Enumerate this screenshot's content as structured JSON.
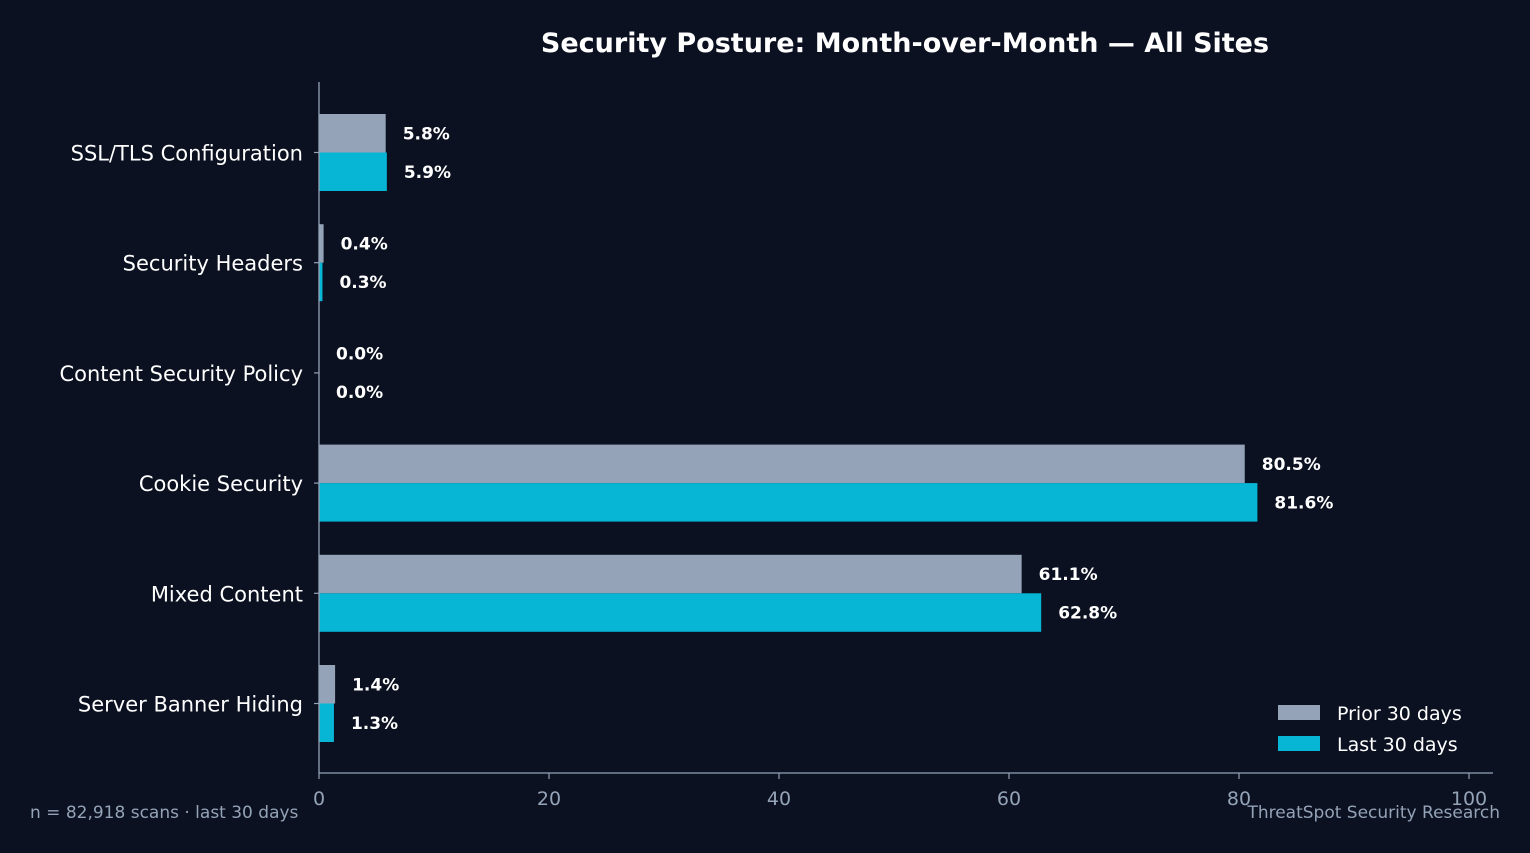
{
  "chart_data": {
    "type": "bar",
    "orientation": "horizontal",
    "title": "Security Posture: Month-over-Month — All Sites",
    "categories": [
      "SSL/TLS Configuration",
      "Security Headers",
      "Content Security Policy",
      "Cookie Security",
      "Mixed Content",
      "Server Banner Hiding"
    ],
    "series": [
      {
        "name": "Prior 30 days",
        "color": "#94a3b8",
        "values": [
          5.8,
          0.4,
          0.0,
          80.5,
          61.1,
          1.4
        ]
      },
      {
        "name": "Last 30 days",
        "color": "#06b6d4",
        "values": [
          5.9,
          0.3,
          0.0,
          81.6,
          62.8,
          1.3
        ]
      }
    ],
    "value_suffix": "%",
    "xlim": [
      0,
      100
    ],
    "xticks": [
      0,
      20,
      40,
      60,
      80,
      100
    ],
    "grid": false,
    "legend_position": "bottom-right"
  },
  "footer": {
    "note": "n = 82,918 scans · last 30 days",
    "credit": "ThreatSpot Security Research"
  }
}
